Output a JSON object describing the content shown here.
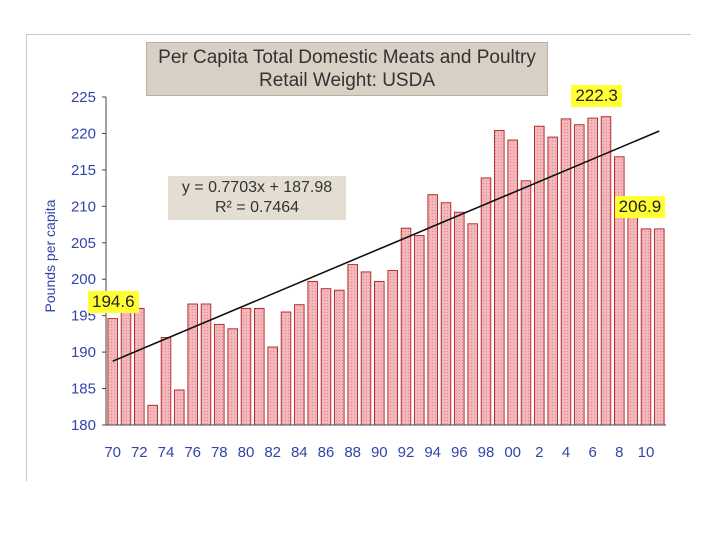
{
  "chart_data": {
    "type": "bar",
    "title": "Per Capita Total Domestic Meats and Poultry",
    "subtitle": "Retail Weight: USDA",
    "ylabel": "Pounds per capita",
    "xlabel": "",
    "ylim": [
      180,
      225
    ],
    "yticks": [
      "180",
      "185",
      "190",
      "195",
      "200",
      "205",
      "210",
      "215",
      "220",
      "225"
    ],
    "categories": [
      "70",
      "71",
      "72",
      "73",
      "74",
      "75",
      "76",
      "77",
      "78",
      "79",
      "80",
      "81",
      "82",
      "83",
      "84",
      "85",
      "86",
      "87",
      "88",
      "89",
      "90",
      "91",
      "92",
      "93",
      "94",
      "95",
      "96",
      "97",
      "98",
      "99",
      "00",
      "1",
      "2",
      "3",
      "4",
      "5",
      "6",
      "7",
      "8",
      "9",
      "10",
      "11"
    ],
    "xtick_labels": [
      "70",
      "72",
      "74",
      "76",
      "78",
      "80",
      "82",
      "84",
      "86",
      "88",
      "90",
      "92",
      "94",
      "96",
      "98",
      "00",
      "2",
      "4",
      "6",
      "8",
      "10"
    ],
    "values": [
      194.6,
      195.5,
      196.0,
      182.7,
      192.0,
      184.8,
      196.6,
      196.6,
      193.8,
      193.2,
      196.0,
      196.0,
      190.7,
      195.5,
      196.5,
      199.7,
      198.7,
      198.5,
      202.0,
      201.0,
      199.7,
      201.2,
      207.0,
      206.0,
      211.6,
      210.5,
      209.2,
      207.6,
      213.9,
      220.4,
      219.1,
      213.5,
      221.0,
      219.5,
      222.0,
      221.2,
      222.1,
      222.3,
      216.8,
      211.0,
      206.9,
      206.9
    ],
    "trendline": {
      "slope": 0.7703,
      "intercept": 187.98
    },
    "bar_color": "#f4b8bc",
    "bar_edge": "#b02020",
    "axis_label_color": "#3344aa",
    "grid": false,
    "legend": "none"
  },
  "annotations": {
    "equation": "y = 0.7703x + 187.98",
    "r_squared": "R² = 0.7464",
    "start_value": "194.6",
    "peak_value": "222.3",
    "end_value": "206.9",
    "highlight_color": "#ffff33"
  }
}
